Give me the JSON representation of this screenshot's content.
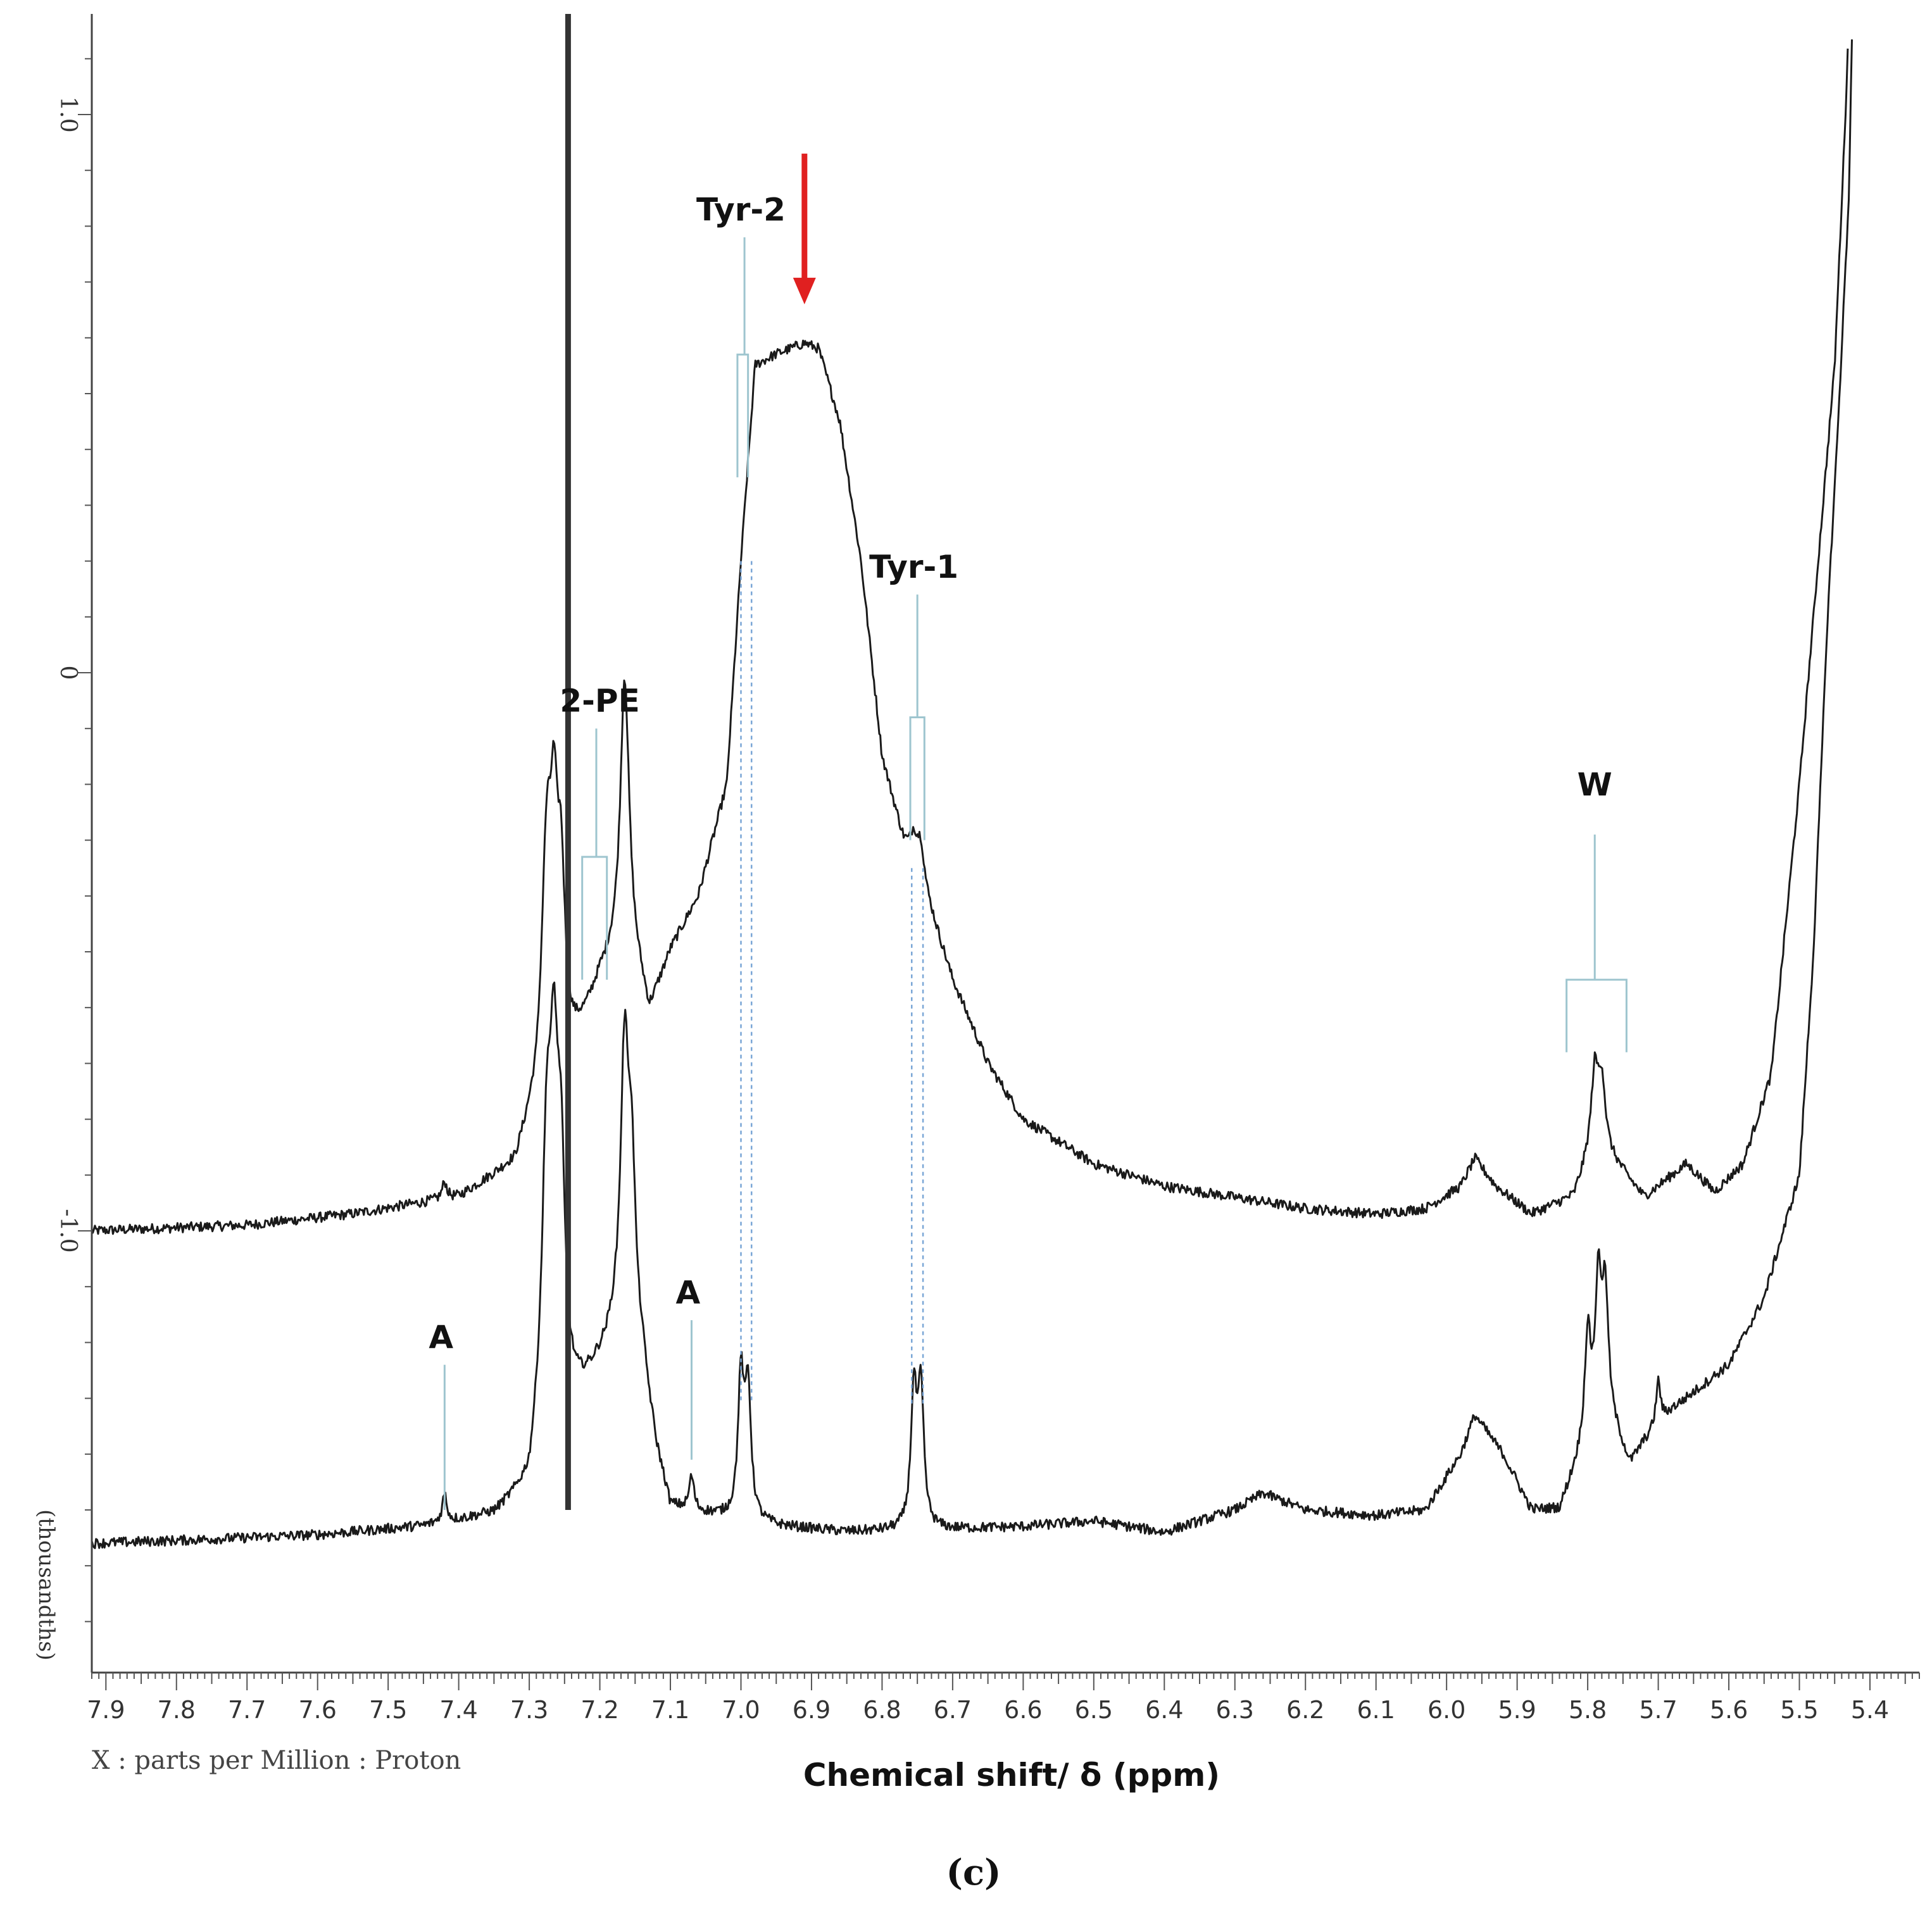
{
  "figure": {
    "caption": "(c)",
    "x_info": "X : parts per Million : Proton",
    "y_unit": "(thousandths)"
  },
  "chart_data": {
    "type": "line",
    "title": "",
    "xlabel": "Chemical shift/ δ (ppm)",
    "ylabel": "",
    "xlim": [
      7.92,
      5.33
    ],
    "ylim": [
      -1.75,
      1.17
    ],
    "x_reversed": true,
    "grid": false,
    "x_ticks": [
      "7.9",
      "7.8",
      "7.7",
      "7.6",
      "7.5",
      "7.4",
      "7.3",
      "7.2",
      "7.1",
      "7.0",
      "6.9",
      "6.8",
      "6.7",
      "6.6",
      "6.5",
      "6.4",
      "6.3",
      "6.2",
      "6.1",
      "6.0",
      "5.9",
      "5.8",
      "5.7",
      "5.6",
      "5.5",
      "5.4"
    ],
    "x_tick_values": [
      7.9,
      7.8,
      7.7,
      7.6,
      7.5,
      7.4,
      7.3,
      7.2,
      7.1,
      7.0,
      6.9,
      6.8,
      6.7,
      6.6,
      6.5,
      6.4,
      6.3,
      6.2,
      6.1,
      6.0,
      5.9,
      5.8,
      5.7,
      5.6,
      5.5,
      5.4
    ],
    "y_ticks": [
      "1.0",
      "0",
      "-1.0"
    ],
    "y_tick_values": [
      1.0,
      0,
      -1.0
    ],
    "series": [
      {
        "color": "#1a1a1a",
        "baseline": [
          [
            7.92,
            -1.0
          ],
          [
            7.7,
            -0.99
          ],
          [
            7.55,
            -0.97
          ],
          [
            7.4,
            -0.94
          ],
          [
            7.32,
            -0.88
          ],
          [
            7.29,
            -0.76
          ],
          [
            7.28,
            -0.66
          ],
          [
            7.26,
            -0.72
          ],
          [
            7.24,
            -0.68
          ],
          [
            7.22,
            -0.62
          ],
          [
            7.2,
            -0.55
          ],
          [
            7.16,
            -0.45
          ],
          [
            7.15,
            -0.51
          ],
          [
            7.13,
            -0.61
          ],
          [
            7.1,
            -0.5
          ],
          [
            7.06,
            -0.4
          ],
          [
            7.02,
            -0.2
          ],
          [
            7.0,
            0.2
          ],
          [
            6.98,
            0.55
          ],
          [
            6.95,
            0.57
          ],
          [
            6.91,
            0.59
          ],
          [
            6.89,
            0.58
          ],
          [
            6.86,
            0.45
          ],
          [
            6.83,
            0.2
          ],
          [
            6.8,
            -0.15
          ],
          [
            6.77,
            -0.3
          ],
          [
            6.75,
            -0.36
          ],
          [
            6.73,
            -0.43
          ],
          [
            6.7,
            -0.55
          ],
          [
            6.65,
            -0.7
          ],
          [
            6.6,
            -0.8
          ],
          [
            6.5,
            -0.88
          ],
          [
            6.4,
            -0.92
          ],
          [
            6.3,
            -0.94
          ],
          [
            6.2,
            -0.96
          ],
          [
            6.1,
            -0.97
          ],
          [
            6.03,
            -0.96
          ],
          [
            5.98,
            -0.92
          ],
          [
            5.96,
            -0.87
          ],
          [
            5.93,
            -0.92
          ],
          [
            5.88,
            -0.97
          ],
          [
            5.82,
            -0.94
          ],
          [
            5.79,
            -0.84
          ],
          [
            5.76,
            -0.88
          ],
          [
            5.72,
            -0.94
          ],
          [
            5.66,
            -0.88
          ],
          [
            5.62,
            -0.93
          ],
          [
            5.58,
            -0.88
          ],
          [
            5.54,
            -0.72
          ],
          [
            5.5,
            -0.2
          ],
          [
            5.47,
            0.25
          ],
          [
            5.45,
            0.55
          ],
          [
            5.435,
            0.99
          ],
          [
            5.43,
            1.17
          ]
        ],
        "peaks": [
          [
            7.275,
            0.3,
            0.007
          ],
          [
            7.265,
            0.38,
            0.007
          ],
          [
            7.255,
            0.3,
            0.007
          ],
          [
            7.165,
            0.45,
            0.007
          ],
          [
            6.745,
            0.07,
            0.006
          ],
          [
            6.755,
            0.05,
            0.006
          ],
          [
            7.42,
            0.03,
            0.004
          ],
          [
            5.79,
            0.12,
            0.006
          ],
          [
            5.78,
            0.12,
            0.006
          ]
        ]
      },
      {
        "color": "#1a1a1a",
        "baseline": [
          [
            7.92,
            -1.56
          ],
          [
            7.8,
            -1.555
          ],
          [
            7.6,
            -1.545
          ],
          [
            7.45,
            -1.53
          ],
          [
            7.35,
            -1.51
          ],
          [
            7.3,
            -1.46
          ],
          [
            7.28,
            -1.3
          ],
          [
            7.25,
            -1.33
          ],
          [
            7.22,
            -1.28
          ],
          [
            7.18,
            -1.2
          ],
          [
            7.14,
            -1.25
          ],
          [
            7.12,
            -1.4
          ],
          [
            7.1,
            -1.5
          ],
          [
            7.05,
            -1.51
          ],
          [
            6.95,
            -1.53
          ],
          [
            6.85,
            -1.54
          ],
          [
            6.7,
            -1.535
          ],
          [
            6.6,
            -1.53
          ],
          [
            6.5,
            -1.52
          ],
          [
            6.4,
            -1.54
          ],
          [
            6.3,
            -1.5
          ],
          [
            6.26,
            -1.47
          ],
          [
            6.2,
            -1.5
          ],
          [
            6.1,
            -1.51
          ],
          [
            6.03,
            -1.5
          ],
          [
            5.98,
            -1.4
          ],
          [
            5.96,
            -1.33
          ],
          [
            5.92,
            -1.4
          ],
          [
            5.88,
            -1.5
          ],
          [
            5.84,
            -1.5
          ],
          [
            5.81,
            -1.4
          ],
          [
            5.78,
            -1.3
          ],
          [
            5.74,
            -1.42
          ],
          [
            5.72,
            -1.38
          ],
          [
            5.68,
            -1.32
          ],
          [
            5.6,
            -1.24
          ],
          [
            5.55,
            -1.12
          ],
          [
            5.5,
            -0.9
          ],
          [
            5.48,
            -0.5
          ],
          [
            5.46,
            0.1
          ],
          [
            5.445,
            0.45
          ],
          [
            5.43,
            0.85
          ],
          [
            5.425,
            1.17
          ]
        ],
        "peaks": [
          [
            7.275,
            0.4,
            0.007
          ],
          [
            7.265,
            0.5,
            0.007
          ],
          [
            7.255,
            0.38,
            0.007
          ],
          [
            7.165,
            0.5,
            0.007
          ],
          [
            7.155,
            0.3,
            0.007
          ],
          [
            7.0,
            0.25,
            0.005
          ],
          [
            6.99,
            0.23,
            0.005
          ],
          [
            6.755,
            0.24,
            0.005
          ],
          [
            6.745,
            0.24,
            0.005
          ],
          [
            7.42,
            0.05,
            0.004
          ],
          [
            7.07,
            0.06,
            0.004
          ],
          [
            5.8,
            0.18,
            0.005
          ],
          [
            5.785,
            0.22,
            0.005
          ],
          [
            5.775,
            0.2,
            0.005
          ],
          [
            5.7,
            0.08,
            0.004
          ]
        ]
      }
    ],
    "reference_line_ppm": 7.245,
    "annotations": [
      {
        "label": "Tyr-2",
        "text_ppm": 7.0,
        "text_y": 0.81,
        "stem_ppm": 6.995,
        "stem_top": 0.78,
        "stem_bottom": 0.57,
        "bracket": [
          7.005,
          6.99
        ],
        "bracket_top": 0.57,
        "bracket_bottom": 0.35,
        "guides": [
          7.0,
          6.985
        ],
        "guide_top": 0.2,
        "guide_bottom": -1.31
      },
      {
        "label": "Tyr-1",
        "text_ppm": 6.755,
        "text_y": 0.17,
        "stem_ppm": 6.75,
        "stem_top": 0.14,
        "stem_bottom": -0.08,
        "bracket": [
          6.76,
          6.74
        ],
        "bracket_top": -0.08,
        "bracket_bottom": -0.3,
        "guides": [
          6.758,
          6.742
        ],
        "guide_top": -0.35,
        "guide_bottom": -1.31
      },
      {
        "label": "2-PE",
        "text_ppm": 7.2,
        "text_y": -0.07,
        "stem_ppm": 7.205,
        "stem_top": -0.1,
        "stem_bottom": -0.33,
        "bracket": [
          7.225,
          7.19
        ],
        "bracket_top": -0.33,
        "bracket_bottom": -0.55
      },
      {
        "label": "W",
        "text_ppm": 5.79,
        "text_y": -0.22,
        "stem_ppm": 5.79,
        "stem_top": -0.29,
        "stem_bottom": -0.55,
        "bracket": [
          5.83,
          5.745
        ],
        "bracket_top": -0.55,
        "bracket_bottom": -0.68
      },
      {
        "label": "A",
        "text_ppm": 7.425,
        "text_y": -1.21,
        "stem_ppm": 7.42,
        "stem_top": -1.24,
        "stem_bottom": -1.5
      },
      {
        "label": "A",
        "text_ppm": 7.075,
        "text_y": -1.13,
        "stem_ppm": 7.07,
        "stem_top": -1.16,
        "stem_bottom": -1.41
      }
    ],
    "arrow": {
      "color": "#e02020",
      "ppm": 6.91,
      "y_top": 0.93,
      "y_tip": 0.66
    }
  }
}
